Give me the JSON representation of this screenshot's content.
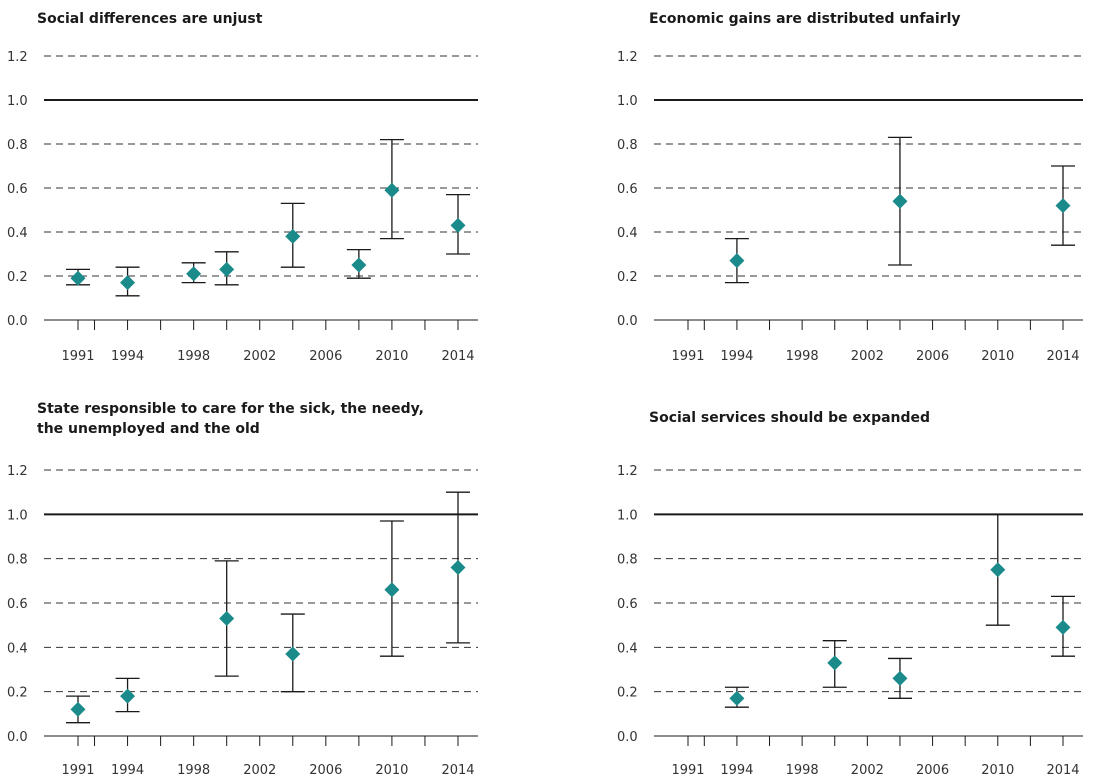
{
  "chart_data": [
    {
      "type": "scatter",
      "title_lines": [
        "Social differences are unjust"
      ],
      "xlabel": "",
      "ylabel": "",
      "x_ticks": [
        "1991",
        "1994",
        "1998",
        "2002",
        "2006",
        "2010",
        "2014"
      ],
      "y_ticks": [
        "0.0",
        "0.2",
        "0.4",
        "0.6",
        "0.8",
        "1.0",
        "1.2"
      ],
      "ylim": [
        0,
        1.2
      ],
      "reference_line": 1.0,
      "grid": "dashed horizontal",
      "marker_color": "#1a8a8a",
      "points": [
        {
          "x": 1991,
          "y": 0.19,
          "low": 0.16,
          "high": 0.23
        },
        {
          "x": 1994,
          "y": 0.17,
          "low": 0.11,
          "high": 0.24
        },
        {
          "x": 1998,
          "y": 0.21,
          "low": 0.17,
          "high": 0.26
        },
        {
          "x": 2000,
          "y": 0.23,
          "low": 0.16,
          "high": 0.31
        },
        {
          "x": 2004,
          "y": 0.38,
          "low": 0.24,
          "high": 0.53
        },
        {
          "x": 2008,
          "y": 0.25,
          "low": 0.19,
          "high": 0.32
        },
        {
          "x": 2010,
          "y": 0.59,
          "low": 0.37,
          "high": 0.82
        },
        {
          "x": 2014,
          "y": 0.43,
          "low": 0.3,
          "high": 0.57
        }
      ]
    },
    {
      "type": "scatter",
      "title_lines": [
        "Economic gains are distributed unfairly"
      ],
      "xlabel": "",
      "ylabel": "",
      "x_ticks": [
        "1991",
        "1994",
        "1998",
        "2002",
        "2006",
        "2010",
        "2014"
      ],
      "y_ticks": [
        "0.0",
        "0.2",
        "0.4",
        "0.6",
        "0.8",
        "1.0",
        "1.2"
      ],
      "ylim": [
        0,
        1.2
      ],
      "reference_line": 1.0,
      "grid": "dashed horizontal",
      "marker_color": "#1a8a8a",
      "points": [
        {
          "x": 1994,
          "y": 0.27,
          "low": 0.17,
          "high": 0.37
        },
        {
          "x": 2004,
          "y": 0.54,
          "low": 0.25,
          "high": 0.83
        },
        {
          "x": 2014,
          "y": 0.52,
          "low": 0.34,
          "high": 0.7
        }
      ]
    },
    {
      "type": "scatter",
      "title_lines": [
        "State responsible to care for the sick, the needy,",
        "the unemployed and the old"
      ],
      "xlabel": "",
      "ylabel": "",
      "x_ticks": [
        "1991",
        "1994",
        "1998",
        "2002",
        "2006",
        "2010",
        "2014"
      ],
      "y_ticks": [
        "0.0",
        "0.2",
        "0.4",
        "0.6",
        "0.8",
        "1.0",
        "1.2"
      ],
      "ylim": [
        0,
        1.2
      ],
      "reference_line": 1.0,
      "grid": "dashed horizontal",
      "marker_color": "#1a8a8a",
      "points": [
        {
          "x": 1991,
          "y": 0.12,
          "low": 0.06,
          "high": 0.18
        },
        {
          "x": 1994,
          "y": 0.18,
          "low": 0.11,
          "high": 0.26
        },
        {
          "x": 2000,
          "y": 0.53,
          "low": 0.27,
          "high": 0.79
        },
        {
          "x": 2004,
          "y": 0.37,
          "low": 0.2,
          "high": 0.55
        },
        {
          "x": 2010,
          "y": 0.66,
          "low": 0.36,
          "high": 0.97
        },
        {
          "x": 2014,
          "y": 0.76,
          "low": 0.42,
          "high": 1.1
        }
      ]
    },
    {
      "type": "scatter",
      "title_lines": [
        "Social services should be expanded"
      ],
      "xlabel": "",
      "ylabel": "",
      "x_ticks": [
        "1991",
        "1994",
        "1998",
        "2002",
        "2006",
        "2010",
        "2014"
      ],
      "y_ticks": [
        "0.0",
        "0.2",
        "0.4",
        "0.6",
        "0.8",
        "1.0",
        "1.2"
      ],
      "ylim": [
        0,
        1.2
      ],
      "reference_line": 1.0,
      "grid": "dashed horizontal",
      "marker_color": "#1a8a8a",
      "points": [
        {
          "x": 1994,
          "y": 0.17,
          "low": 0.13,
          "high": 0.22
        },
        {
          "x": 2000,
          "y": 0.33,
          "low": 0.22,
          "high": 0.43
        },
        {
          "x": 2004,
          "y": 0.26,
          "low": 0.17,
          "high": 0.35
        },
        {
          "x": 2010,
          "y": 0.75,
          "low": 0.5,
          "high": 1.0
        },
        {
          "x": 2014,
          "y": 0.49,
          "low": 0.36,
          "high": 0.63
        }
      ]
    }
  ]
}
